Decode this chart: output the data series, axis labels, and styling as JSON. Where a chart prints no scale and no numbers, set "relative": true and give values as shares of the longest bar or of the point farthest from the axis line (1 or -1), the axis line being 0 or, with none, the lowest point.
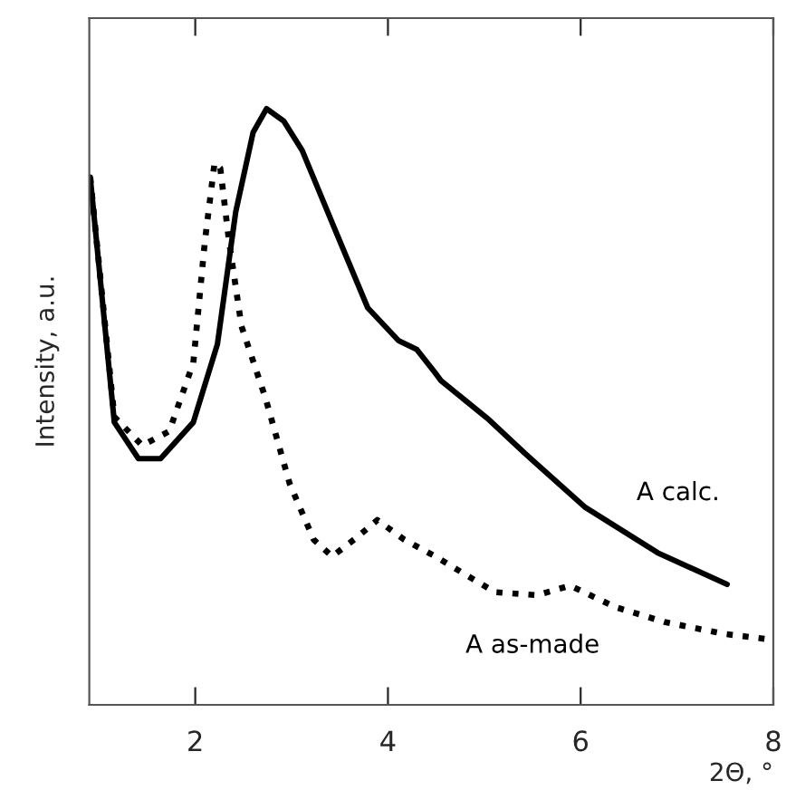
{
  "chart_data": {
    "type": "line",
    "relative": true,
    "xlabel": "2Θ, °",
    "ylabel": "Intensity, a.u.",
    "xlim": [
      0.9,
      8
    ],
    "xticks": [
      2,
      4,
      6,
      8
    ],
    "grid": false,
    "legend": false,
    "series": [
      {
        "name": "A calc.",
        "color": "#000000",
        "line_style": "solid",
        "x": [
          0.91,
          1.16,
          1.41,
          1.64,
          1.98,
          2.23,
          2.42,
          2.6,
          2.74,
          2.92,
          3.11,
          3.42,
          3.79,
          4.11,
          4.3,
          4.48,
          4.55,
          5.05,
          5.42,
          6.05,
          6.8,
          7.52
        ],
        "values": [
          0.885,
          0.474,
          0.413,
          0.413,
          0.474,
          0.605,
          0.827,
          0.96,
          1.0,
          0.979,
          0.93,
          0.809,
          0.666,
          0.611,
          0.596,
          0.559,
          0.544,
          0.478,
          0.422,
          0.331,
          0.255,
          0.202
        ]
      },
      {
        "name": "A as-made",
        "color": "#000000",
        "line_style": "dotted",
        "x": [
          0.91,
          1.16,
          1.45,
          1.73,
          1.98,
          2.1,
          2.2,
          2.26,
          2.35,
          2.48,
          2.73,
          2.98,
          3.23,
          3.42,
          3.67,
          3.89,
          4.17,
          4.48,
          5.11,
          5.55,
          5.89,
          6.36,
          6.87,
          7.49,
          8.0
        ],
        "values": [
          0.885,
          0.483,
          0.435,
          0.459,
          0.574,
          0.778,
          0.909,
          0.9,
          0.778,
          0.635,
          0.514,
          0.371,
          0.277,
          0.249,
          0.28,
          0.31,
          0.277,
          0.25,
          0.189,
          0.184,
          0.2,
          0.164,
          0.139,
          0.119,
          0.109
        ]
      }
    ]
  }
}
